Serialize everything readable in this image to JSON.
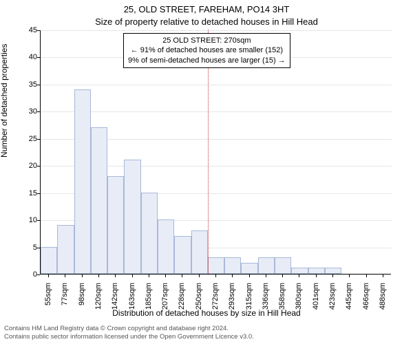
{
  "title_line1": "25, OLD STREET, FAREHAM, PO14 3HT",
  "title_line2": "Size of property relative to detached houses in Hill Head",
  "chart": {
    "type": "histogram",
    "ylim": [
      0,
      45
    ],
    "ytick_step": 5,
    "yticks": [
      0,
      5,
      10,
      15,
      20,
      25,
      30,
      35,
      40,
      45
    ],
    "ylabel": "Number of detached properties",
    "xlabel": "Distribution of detached houses by size in Hill Head",
    "x_categories": [
      "55sqm",
      "77sqm",
      "98sqm",
      "120sqm",
      "142sqm",
      "163sqm",
      "185sqm",
      "207sqm",
      "228sqm",
      "250sqm",
      "272sqm",
      "293sqm",
      "315sqm",
      "336sqm",
      "358sqm",
      "380sqm",
      "401sqm",
      "423sqm",
      "445sqm",
      "466sqm",
      "488sqm"
    ],
    "bar_values": [
      5,
      9,
      34,
      27,
      18,
      21,
      15,
      10,
      7,
      8,
      3,
      3,
      2,
      3,
      3,
      1.2,
      1.2,
      1.2,
      0,
      0,
      0
    ],
    "bar_fill": "#e8ecf7",
    "bar_stroke": "#a8b8d8",
    "grid_color": "#e6e6e6",
    "background": "#ffffff",
    "marker_index": 10,
    "marker_color": "#cc3333",
    "annotation": {
      "line1": "25 OLD STREET: 270sqm",
      "line2": "← 91% of detached houses are smaller (152)",
      "line3": "9% of semi-detached houses are larger (15) →"
    },
    "title_fontsize": 13,
    "label_fontsize": 12,
    "tick_fontsize": 11,
    "bar_width_ratio": 1.0
  },
  "footer_line1": "Contains HM Land Registry data © Crown copyright and database right 2024.",
  "footer_line2": "Contains public sector information licensed under the Open Government Licence v3.0."
}
